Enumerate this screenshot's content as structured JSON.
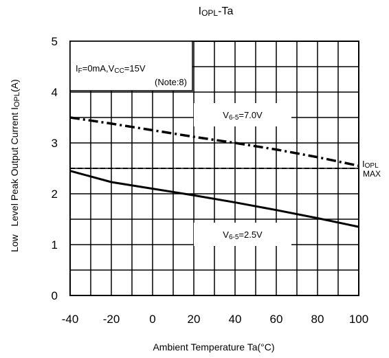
{
  "chart_data": {
    "type": "line",
    "title": {
      "main": "I",
      "sub": "OPL",
      "suffix": "-Ta"
    },
    "xlabel": "Ambient Temperature Ta(°C)",
    "ylabel": {
      "prefix": "Low   Level Peak Output Current I",
      "sub": "OPL",
      "suffix": "(A)"
    },
    "xlim": [
      -40,
      100
    ],
    "ylim": [
      0,
      5
    ],
    "xticks": [
      "-40",
      "-20",
      "0",
      "20",
      "40",
      "60",
      "80",
      "100"
    ],
    "yticks": [
      "0",
      "1",
      "2",
      "3",
      "4",
      "5"
    ],
    "grid": true,
    "conditions": {
      "line1": [
        {
          "t": "I",
          "sub": false
        },
        {
          "t": "F",
          "sub": true
        },
        {
          "t": "=0mA,V",
          "sub": false
        },
        {
          "t": "CC",
          "sub": true
        },
        {
          "t": "=15V",
          "sub": false
        }
      ],
      "line2": "(Note:8)"
    },
    "series": [
      {
        "label": {
          "main": "V",
          "sub": "6-5",
          "suffix": "=7.0V"
        },
        "style": "dashdot",
        "color": "#000000",
        "x": [
          -40,
          -20,
          0,
          20,
          40,
          60,
          80,
          100
        ],
        "y": [
          3.5,
          3.38,
          3.25,
          3.12,
          3.0,
          2.87,
          2.72,
          2.55
        ]
      },
      {
        "label": {
          "main": "V",
          "sub": "6-5",
          "suffix": "=2.5V"
        },
        "style": "solid",
        "color": "#000000",
        "x": [
          -40,
          -20,
          0,
          20,
          40,
          60,
          80,
          100
        ],
        "y": [
          2.45,
          2.23,
          2.1,
          1.97,
          1.83,
          1.68,
          1.52,
          1.35
        ]
      }
    ],
    "reference_line": {
      "y": 2.5,
      "style": "dashed",
      "label": {
        "main": "I",
        "sub": "OPL",
        "line2": "MAX"
      }
    }
  }
}
